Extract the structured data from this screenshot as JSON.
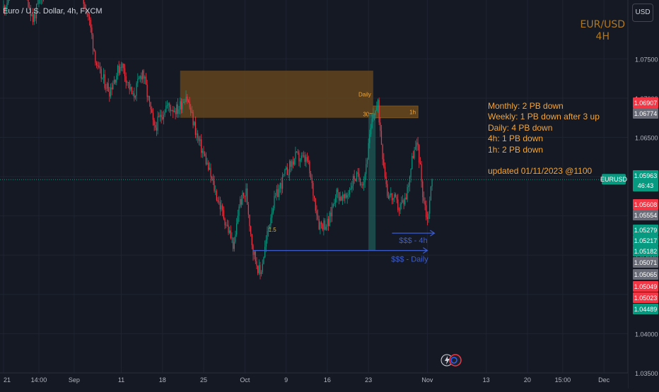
{
  "header": {
    "symbol_line": "Euro / U.S. Dollar, 4h, FXCM",
    "currency_button": "USD",
    "pair": "EUR/USD",
    "timeframe": "4H"
  },
  "notes": {
    "lines": [
      "Monthly: 2 PB down",
      "Weekly: 1 PB down after 3 up",
      "Daily: 4 PB down",
      "4h: 1 PB down",
      "1h: 2 PB down"
    ],
    "updated": "updated 01/11/2023 @1100"
  },
  "colors": {
    "background": "#151924",
    "grid": "#1f2431",
    "up_candle": "#089981",
    "down_candle": "#f23645",
    "zone_fill": "#6b4a1c",
    "zone_label": "#f7a530",
    "liquidity_line": "#3d5ccc",
    "annotation_text": "#f2a53a",
    "current_price_line": "#1b8f7c"
  },
  "chart_data": {
    "type": "candlestick",
    "symbol": "EURUSD",
    "interval": "4h",
    "ylim": [
      1.035,
      1.0825
    ],
    "price_ticks": [
      1.035,
      1.04,
      1.045,
      1.05,
      1.055,
      1.06,
      1.065,
      1.07,
      1.075
    ],
    "time_ticks": [
      "21",
      "14:00",
      "Sep",
      "11",
      "18",
      "25",
      "Oct",
      "9",
      "16",
      "23",
      "Nov",
      "13",
      "20",
      "15:00",
      "Dec"
    ],
    "time_tick_bars": [
      0,
      30,
      60,
      100,
      135,
      170,
      205,
      240,
      275,
      310,
      360,
      410,
      445,
      475,
      510
    ],
    "key_points": [
      {
        "bar": 0,
        "price": 1.0815
      },
      {
        "bar": 15,
        "price": 1.0858
      },
      {
        "bar": 25,
        "price": 1.08
      },
      {
        "bar": 40,
        "price": 1.086
      },
      {
        "bar": 50,
        "price": 1.0835
      },
      {
        "bar": 62,
        "price": 1.085
      },
      {
        "bar": 72,
        "price": 1.0805
      },
      {
        "bar": 80,
        "price": 1.0735
      },
      {
        "bar": 90,
        "price": 1.071
      },
      {
        "bar": 100,
        "price": 1.0745
      },
      {
        "bar": 110,
        "price": 1.07
      },
      {
        "bar": 118,
        "price": 1.0735
      },
      {
        "bar": 128,
        "price": 1.066
      },
      {
        "bar": 138,
        "price": 1.069
      },
      {
        "bar": 148,
        "price": 1.0685
      },
      {
        "bar": 155,
        "price": 1.0705
      },
      {
        "bar": 165,
        "price": 1.0648
      },
      {
        "bar": 172,
        "price": 1.062
      },
      {
        "bar": 180,
        "price": 1.058
      },
      {
        "bar": 188,
        "price": 1.0545
      },
      {
        "bar": 196,
        "price": 1.051
      },
      {
        "bar": 200,
        "price": 1.0565
      },
      {
        "bar": 206,
        "price": 1.058
      },
      {
        "bar": 212,
        "price": 1.0505
      },
      {
        "bar": 218,
        "price": 1.0475
      },
      {
        "bar": 228,
        "price": 1.056
      },
      {
        "bar": 238,
        "price": 1.06
      },
      {
        "bar": 248,
        "price": 1.0625
      },
      {
        "bar": 258,
        "price": 1.062
      },
      {
        "bar": 268,
        "price": 1.054
      },
      {
        "bar": 276,
        "price": 1.054
      },
      {
        "bar": 282,
        "price": 1.058
      },
      {
        "bar": 290,
        "price": 1.057
      },
      {
        "bar": 298,
        "price": 1.06
      },
      {
        "bar": 306,
        "price": 1.0595
      },
      {
        "bar": 314,
        "price": 1.068
      },
      {
        "bar": 318,
        "price": 1.069
      },
      {
        "bar": 322,
        "price": 1.063
      },
      {
        "bar": 326,
        "price": 1.058
      },
      {
        "bar": 332,
        "price": 1.057
      },
      {
        "bar": 336,
        "price": 1.056
      },
      {
        "bar": 342,
        "price": 1.0575
      },
      {
        "bar": 348,
        "price": 1.063
      },
      {
        "bar": 352,
        "price": 1.064
      },
      {
        "bar": 356,
        "price": 1.058
      },
      {
        "bar": 360,
        "price": 1.0545
      },
      {
        "bar": 364,
        "price": 1.0596
      }
    ],
    "current_price": 1.05963,
    "countdown": "46:43",
    "ticker_label": "EURUSD",
    "price_labels": [
      {
        "text": "1.06907",
        "color": "#f23645"
      },
      {
        "text": "1.06774",
        "color": "#6a6d78"
      },
      {
        "text": "1.05963",
        "color": "#089981"
      },
      {
        "text": "1.05608",
        "color": "#f23645"
      },
      {
        "text": "1.05554",
        "color": "#6a6d78"
      },
      {
        "text": "1.05279",
        "color": "#089981"
      },
      {
        "text": "1.05217",
        "color": "#089981"
      },
      {
        "text": "1.05182",
        "color": "#089981"
      },
      {
        "text": "1.05071",
        "color": "#6a6d78"
      },
      {
        "text": "1.05065",
        "color": "#6a6d78"
      },
      {
        "text": "1.05049",
        "color": "#f23645"
      },
      {
        "text": "1.05023",
        "color": "#f23645"
      },
      {
        "text": "1.04489",
        "color": "#089981"
      }
    ],
    "annotations": {
      "daily_zone": {
        "label": "Daily",
        "bar_start": 150,
        "bar_end": 314,
        "price_top": 1.0735,
        "price_bottom": 1.0675
      },
      "h1_zone": {
        "label": "1h",
        "bar_start": 314,
        "bar_end": 352,
        "price_top": 1.069,
        "price_bottom": 1.0675
      },
      "m30_label": {
        "label": "30m",
        "bar": 310,
        "price": 1.0677
      },
      "liq_4h": {
        "label": "$$$ - 4h",
        "bar_start": 330,
        "bar_end": 366,
        "price": 1.0528
      },
      "liq_daily": {
        "label": "$$$ - Daily",
        "bar_start": 212,
        "bar_end": 360,
        "price": 1.0506
      },
      "small_label": {
        "label": "1.5",
        "bar": 225,
        "price": 1.053
      }
    }
  }
}
